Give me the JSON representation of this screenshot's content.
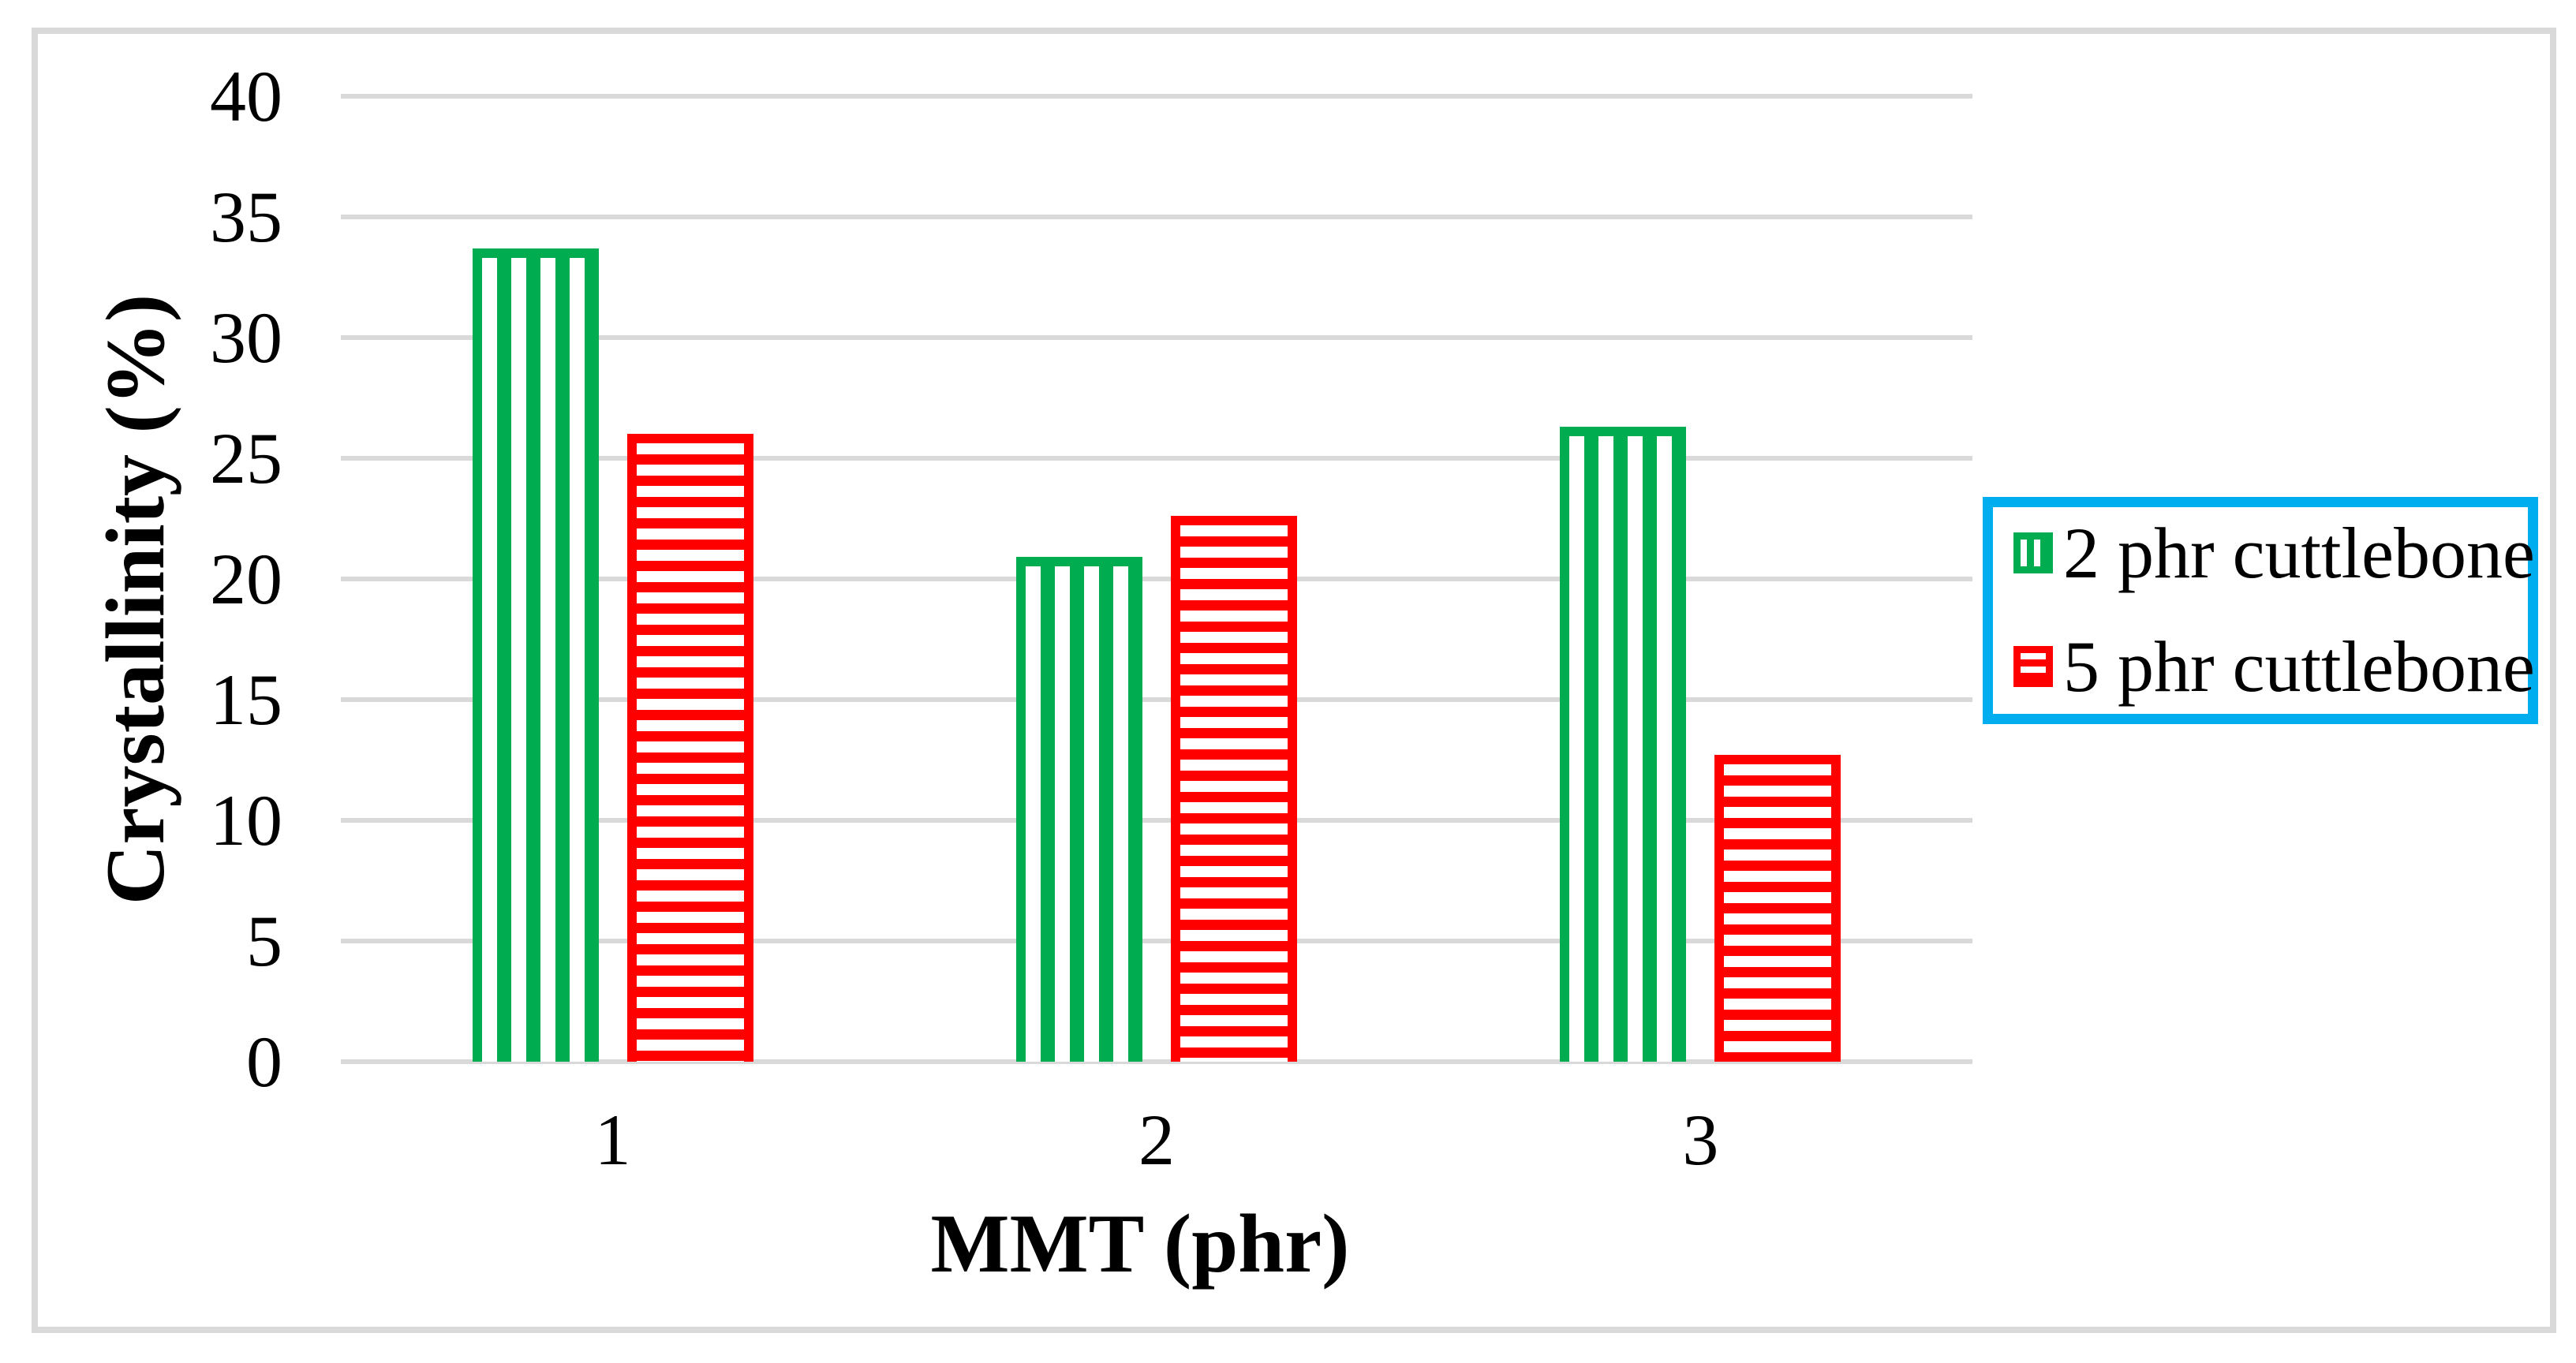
{
  "chart_data": {
    "type": "bar",
    "title": "",
    "categories": [
      "1",
      "2",
      "3"
    ],
    "series": [
      {
        "name": "2 phr cuttlebone",
        "color": "#00AC50",
        "pattern": "vertical-stripes",
        "values": [
          33.7,
          20.9,
          26.3
        ]
      },
      {
        "name": "5 phr cuttlebone",
        "color": "#FF0000",
        "pattern": "horizontal-stripes",
        "values": [
          26.0,
          22.6,
          12.7
        ]
      }
    ],
    "xlabel": "MMT (phr)",
    "ylabel": "Crystallinity (%)",
    "ylim": [
      0,
      40
    ],
    "ytick_step": 5,
    "yticks": [
      "40",
      "35",
      "30",
      "25",
      "20",
      "15",
      "10",
      "5",
      "0"
    ],
    "grid": true,
    "legend_position": "right",
    "colors": {
      "gridline": "#D9D9D9",
      "frame": "#D9D9D9",
      "background": "#FFFFFF",
      "legend_border": "#00AEEF"
    }
  }
}
